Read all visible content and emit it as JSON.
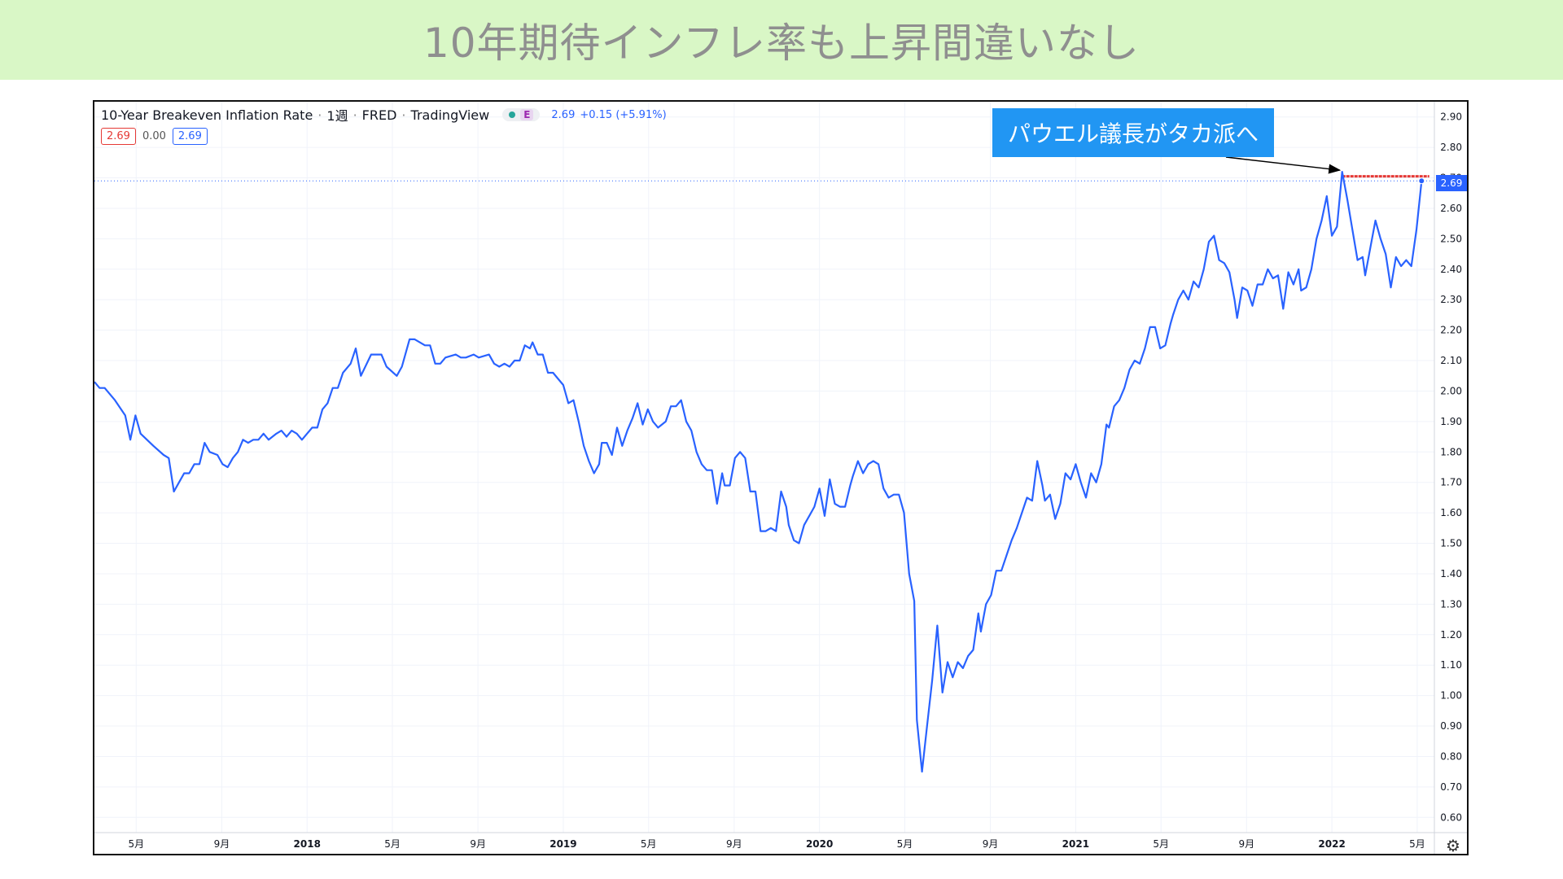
{
  "banner": {
    "title": "10年期待インフレ率も上昇間違いなし"
  },
  "legend": {
    "symbol": "10-Year Breakeven Inflation Rate",
    "interval": "1週",
    "source": "FRED",
    "provider": "TradingView",
    "e_label": "E",
    "last": "2.69",
    "change": "+0.15 (+5.91%)",
    "ohlc": [
      "2.69",
      "0.00",
      "2.69"
    ]
  },
  "annotation": {
    "text": "パウエル議長がタカ派へ"
  },
  "price_tag": "2.69",
  "colors": {
    "line": "#2962ff",
    "level": "#e53935",
    "banner": "#d9f7c6",
    "annotation": "#2196f3"
  },
  "chart_data": {
    "type": "line",
    "title": "10-Year Breakeven Inflation Rate",
    "ylim": [
      0.55,
      2.95
    ],
    "y_ticks": [
      "2.90",
      "2.80",
      "2.70",
      "2.60",
      "2.50",
      "2.40",
      "2.30",
      "2.20",
      "2.10",
      "2.00",
      "1.90",
      "1.80",
      "1.70",
      "1.60",
      "1.50",
      "1.40",
      "1.30",
      "1.20",
      "1.10",
      "1.00",
      "0.90",
      "0.80",
      "0.70",
      "0.60"
    ],
    "x_ticks": [
      {
        "label": "5月",
        "t": 2017.333
      },
      {
        "label": "9月",
        "t": 2017.667
      },
      {
        "label": "2018",
        "t": 2018.0
      },
      {
        "label": "5月",
        "t": 2018.333
      },
      {
        "label": "9月",
        "t": 2018.667
      },
      {
        "label": "2019",
        "t": 2019.0
      },
      {
        "label": "5月",
        "t": 2019.333
      },
      {
        "label": "9月",
        "t": 2019.667
      },
      {
        "label": "2020",
        "t": 2020.0
      },
      {
        "label": "5月",
        "t": 2020.333
      },
      {
        "label": "9月",
        "t": 2020.667
      },
      {
        "label": "2021",
        "t": 2021.0
      },
      {
        "label": "5月",
        "t": 2021.333
      },
      {
        "label": "9月",
        "t": 2021.667
      },
      {
        "label": "2022",
        "t": 2022.0
      },
      {
        "label": "5月",
        "t": 2022.333
      }
    ],
    "xlim": [
      2017.17,
      2022.4
    ],
    "grid": true,
    "series": [
      {
        "values": [
          [
            2017.17,
            2.03
          ],
          [
            2017.19,
            2.01
          ],
          [
            2017.21,
            2.01
          ],
          [
            2017.25,
            1.97
          ],
          [
            2017.29,
            1.92
          ],
          [
            2017.31,
            1.84
          ],
          [
            2017.33,
            1.92
          ],
          [
            2017.35,
            1.86
          ],
          [
            2017.4,
            1.82
          ],
          [
            2017.44,
            1.79
          ],
          [
            2017.46,
            1.78
          ],
          [
            2017.48,
            1.67
          ],
          [
            2017.5,
            1.7
          ],
          [
            2017.52,
            1.73
          ],
          [
            2017.54,
            1.73
          ],
          [
            2017.56,
            1.76
          ],
          [
            2017.58,
            1.76
          ],
          [
            2017.6,
            1.83
          ],
          [
            2017.62,
            1.8
          ],
          [
            2017.65,
            1.79
          ],
          [
            2017.67,
            1.76
          ],
          [
            2017.69,
            1.75
          ],
          [
            2017.71,
            1.78
          ],
          [
            2017.73,
            1.8
          ],
          [
            2017.75,
            1.84
          ],
          [
            2017.77,
            1.83
          ],
          [
            2017.79,
            1.84
          ],
          [
            2017.81,
            1.84
          ],
          [
            2017.83,
            1.86
          ],
          [
            2017.85,
            1.84
          ],
          [
            2017.88,
            1.86
          ],
          [
            2017.9,
            1.87
          ],
          [
            2017.92,
            1.85
          ],
          [
            2017.94,
            1.87
          ],
          [
            2017.96,
            1.86
          ],
          [
            2017.98,
            1.84
          ],
          [
            2018.0,
            1.86
          ],
          [
            2018.02,
            1.88
          ],
          [
            2018.04,
            1.88
          ],
          [
            2018.06,
            1.94
          ],
          [
            2018.08,
            1.96
          ],
          [
            2018.1,
            2.01
          ],
          [
            2018.12,
            2.01
          ],
          [
            2018.14,
            2.06
          ],
          [
            2018.17,
            2.09
          ],
          [
            2018.19,
            2.14
          ],
          [
            2018.21,
            2.05
          ],
          [
            2018.25,
            2.12
          ],
          [
            2018.29,
            2.12
          ],
          [
            2018.31,
            2.08
          ],
          [
            2018.35,
            2.05
          ],
          [
            2018.37,
            2.08
          ],
          [
            2018.4,
            2.17
          ],
          [
            2018.42,
            2.17
          ],
          [
            2018.46,
            2.15
          ],
          [
            2018.48,
            2.15
          ],
          [
            2018.5,
            2.09
          ],
          [
            2018.52,
            2.09
          ],
          [
            2018.54,
            2.11
          ],
          [
            2018.58,
            2.12
          ],
          [
            2018.6,
            2.11
          ],
          [
            2018.62,
            2.11
          ],
          [
            2018.65,
            2.12
          ],
          [
            2018.67,
            2.11
          ],
          [
            2018.71,
            2.12
          ],
          [
            2018.73,
            2.09
          ],
          [
            2018.75,
            2.08
          ],
          [
            2018.77,
            2.09
          ],
          [
            2018.79,
            2.08
          ],
          [
            2018.81,
            2.1
          ],
          [
            2018.83,
            2.1
          ],
          [
            2018.85,
            2.15
          ],
          [
            2018.87,
            2.14
          ],
          [
            2018.88,
            2.16
          ],
          [
            2018.9,
            2.12
          ],
          [
            2018.92,
            2.12
          ],
          [
            2018.94,
            2.06
          ],
          [
            2018.96,
            2.06
          ],
          [
            2018.98,
            2.04
          ],
          [
            2019.0,
            2.02
          ],
          [
            2019.02,
            1.96
          ],
          [
            2019.04,
            1.97
          ],
          [
            2019.06,
            1.9
          ],
          [
            2019.08,
            1.82
          ],
          [
            2019.1,
            1.77
          ],
          [
            2019.12,
            1.73
          ],
          [
            2019.14,
            1.76
          ],
          [
            2019.15,
            1.83
          ],
          [
            2019.17,
            1.83
          ],
          [
            2019.19,
            1.79
          ],
          [
            2019.21,
            1.88
          ],
          [
            2019.23,
            1.82
          ],
          [
            2019.25,
            1.87
          ],
          [
            2019.27,
            1.91
          ],
          [
            2019.29,
            1.96
          ],
          [
            2019.31,
            1.89
          ],
          [
            2019.33,
            1.94
          ],
          [
            2019.35,
            1.9
          ],
          [
            2019.37,
            1.88
          ],
          [
            2019.4,
            1.9
          ],
          [
            2019.42,
            1.95
          ],
          [
            2019.44,
            1.95
          ],
          [
            2019.46,
            1.97
          ],
          [
            2019.48,
            1.9
          ],
          [
            2019.5,
            1.87
          ],
          [
            2019.52,
            1.8
          ],
          [
            2019.54,
            1.76
          ],
          [
            2019.56,
            1.74
          ],
          [
            2019.58,
            1.74
          ],
          [
            2019.6,
            1.63
          ],
          [
            2019.62,
            1.73
          ],
          [
            2019.63,
            1.69
          ],
          [
            2019.65,
            1.69
          ],
          [
            2019.67,
            1.78
          ],
          [
            2019.69,
            1.8
          ],
          [
            2019.71,
            1.78
          ],
          [
            2019.73,
            1.67
          ],
          [
            2019.75,
            1.67
          ],
          [
            2019.77,
            1.54
          ],
          [
            2019.79,
            1.54
          ],
          [
            2019.81,
            1.55
          ],
          [
            2019.83,
            1.54
          ],
          [
            2019.85,
            1.67
          ],
          [
            2019.87,
            1.62
          ],
          [
            2019.88,
            1.56
          ],
          [
            2019.9,
            1.51
          ],
          [
            2019.92,
            1.5
          ],
          [
            2019.94,
            1.56
          ],
          [
            2019.96,
            1.59
          ],
          [
            2019.98,
            1.62
          ],
          [
            2020.0,
            1.68
          ],
          [
            2020.02,
            1.59
          ],
          [
            2020.04,
            1.71
          ],
          [
            2020.06,
            1.63
          ],
          [
            2020.08,
            1.62
          ],
          [
            2020.1,
            1.62
          ],
          [
            2020.12,
            1.69
          ],
          [
            2020.13,
            1.72
          ],
          [
            2020.15,
            1.77
          ],
          [
            2020.17,
            1.73
          ],
          [
            2020.19,
            1.76
          ],
          [
            2020.21,
            1.77
          ],
          [
            2020.23,
            1.76
          ],
          [
            2020.25,
            1.68
          ],
          [
            2020.27,
            1.65
          ],
          [
            2020.29,
            1.66
          ],
          [
            2020.31,
            1.66
          ],
          [
            2020.33,
            1.6
          ],
          [
            2020.35,
            1.4
          ],
          [
            2020.37,
            1.31
          ],
          [
            2020.38,
            0.92
          ],
          [
            2020.4,
            0.75
          ],
          [
            2020.42,
            0.9
          ],
          [
            2020.44,
            1.05
          ],
          [
            2020.46,
            1.23
          ],
          [
            2020.48,
            1.01
          ],
          [
            2020.5,
            1.11
          ],
          [
            2020.52,
            1.06
          ],
          [
            2020.54,
            1.11
          ],
          [
            2020.56,
            1.09
          ],
          [
            2020.58,
            1.13
          ],
          [
            2020.6,
            1.15
          ],
          [
            2020.62,
            1.27
          ],
          [
            2020.63,
            1.21
          ],
          [
            2020.65,
            1.3
          ],
          [
            2020.67,
            1.33
          ],
          [
            2020.69,
            1.41
          ],
          [
            2020.71,
            1.41
          ],
          [
            2020.73,
            1.46
          ],
          [
            2020.75,
            1.51
          ],
          [
            2020.77,
            1.55
          ],
          [
            2020.79,
            1.6
          ],
          [
            2020.81,
            1.65
          ],
          [
            2020.83,
            1.64
          ],
          [
            2020.85,
            1.77
          ],
          [
            2020.87,
            1.69
          ],
          [
            2020.88,
            1.64
          ],
          [
            2020.9,
            1.66
          ],
          [
            2020.92,
            1.58
          ],
          [
            2020.94,
            1.63
          ],
          [
            2020.96,
            1.73
          ],
          [
            2020.98,
            1.71
          ],
          [
            2021.0,
            1.76
          ],
          [
            2021.02,
            1.7
          ],
          [
            2021.04,
            1.65
          ],
          [
            2021.06,
            1.73
          ],
          [
            2021.08,
            1.7
          ],
          [
            2021.1,
            1.76
          ],
          [
            2021.12,
            1.89
          ],
          [
            2021.13,
            1.88
          ],
          [
            2021.15,
            1.95
          ],
          [
            2021.17,
            1.97
          ],
          [
            2021.19,
            2.01
          ],
          [
            2021.21,
            2.07
          ],
          [
            2021.23,
            2.1
          ],
          [
            2021.25,
            2.09
          ],
          [
            2021.27,
            2.14
          ],
          [
            2021.29,
            2.21
          ],
          [
            2021.31,
            2.21
          ],
          [
            2021.33,
            2.14
          ],
          [
            2021.35,
            2.15
          ],
          [
            2021.37,
            2.22
          ],
          [
            2021.38,
            2.25
          ],
          [
            2021.4,
            2.3
          ],
          [
            2021.42,
            2.33
          ],
          [
            2021.44,
            2.3
          ],
          [
            2021.46,
            2.36
          ],
          [
            2021.48,
            2.34
          ],
          [
            2021.5,
            2.4
          ],
          [
            2021.52,
            2.49
          ],
          [
            2021.54,
            2.51
          ],
          [
            2021.56,
            2.43
          ],
          [
            2021.58,
            2.42
          ],
          [
            2021.6,
            2.39
          ],
          [
            2021.62,
            2.3
          ],
          [
            2021.63,
            2.24
          ],
          [
            2021.65,
            2.34
          ],
          [
            2021.67,
            2.33
          ],
          [
            2021.69,
            2.28
          ],
          [
            2021.71,
            2.35
          ],
          [
            2021.73,
            2.35
          ],
          [
            2021.75,
            2.4
          ],
          [
            2021.77,
            2.37
          ],
          [
            2021.79,
            2.38
          ],
          [
            2021.81,
            2.27
          ],
          [
            2021.83,
            2.39
          ],
          [
            2021.85,
            2.35
          ],
          [
            2021.87,
            2.4
          ],
          [
            2021.88,
            2.33
          ],
          [
            2021.9,
            2.34
          ],
          [
            2021.92,
            2.4
          ],
          [
            2021.94,
            2.5
          ],
          [
            2021.96,
            2.56
          ],
          [
            2021.98,
            2.64
          ],
          [
            2022.0,
            2.51
          ],
          [
            2022.02,
            2.54
          ],
          [
            2022.04,
            2.72
          ],
          [
            2022.06,
            2.63
          ],
          [
            2022.08,
            2.53
          ],
          [
            2022.1,
            2.43
          ],
          [
            2022.12,
            2.44
          ],
          [
            2022.13,
            2.38
          ],
          [
            2022.15,
            2.47
          ],
          [
            2022.17,
            2.56
          ],
          [
            2022.19,
            2.5
          ],
          [
            2022.21,
            2.45
          ],
          [
            2022.23,
            2.34
          ],
          [
            2022.25,
            2.44
          ],
          [
            2022.27,
            2.41
          ],
          [
            2022.29,
            2.43
          ],
          [
            2022.31,
            2.41
          ],
          [
            2022.33,
            2.53
          ],
          [
            2022.35,
            2.69
          ]
        ]
      }
    ],
    "reference_level": {
      "value": 2.705,
      "from": 2022.04,
      "to": 2022.38
    },
    "last_value_line": 2.69
  }
}
